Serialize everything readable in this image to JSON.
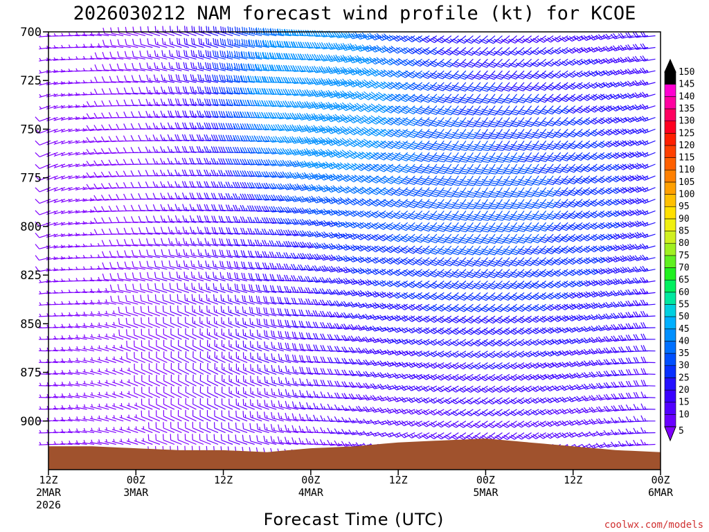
{
  "title": "2026030212 NAM forecast wind profile (kt) for KCOE",
  "credit": "coolwx.com/models",
  "colors": {
    "ground": "#a0522d",
    "scale": [
      "#7f00ff",
      "#6a00ff",
      "#5200ff",
      "#3a00ff",
      "#2410ff",
      "#0830ff",
      "#0050ff",
      "#0070ff",
      "#0090ff",
      "#00b0ff",
      "#00d0e0",
      "#00e8a0",
      "#00f060",
      "#20f020",
      "#60f020",
      "#a0f020",
      "#d0f020",
      "#f0f010",
      "#ffe000",
      "#ffc000",
      "#ffa000",
      "#ff8000",
      "#ff6000",
      "#ff4000",
      "#ff2000",
      "#ff0020",
      "#ff0060",
      "#ff00a0",
      "#ff00d0",
      "#000000"
    ]
  },
  "chart_data": {
    "type": "wind-barb-time-height",
    "title": "2026030212 NAM forecast wind profile (kt) for KCOE",
    "xlabel": "Forecast Time (UTC)",
    "ylabel": "",
    "ylim": [
      700,
      925
    ],
    "yticks": [
      700,
      725,
      750,
      775,
      800,
      825,
      850,
      875,
      900
    ],
    "x_hours_range": [
      0,
      84
    ],
    "xticks": [
      {
        "hour": 0,
        "lines": [
          "12Z",
          "2MAR",
          "2026"
        ]
      },
      {
        "hour": 12,
        "lines": [
          "00Z",
          "3MAR"
        ]
      },
      {
        "hour": 24,
        "lines": [
          "12Z"
        ]
      },
      {
        "hour": 36,
        "lines": [
          "00Z",
          "4MAR"
        ]
      },
      {
        "hour": 48,
        "lines": [
          "12Z"
        ]
      },
      {
        "hour": 60,
        "lines": [
          "00Z",
          "5MAR"
        ]
      },
      {
        "hour": 72,
        "lines": [
          "12Z"
        ]
      },
      {
        "hour": 84,
        "lines": [
          "00Z",
          "6MAR"
        ]
      }
    ],
    "colorbar": {
      "units": "kt",
      "levels": [
        5,
        10,
        15,
        20,
        25,
        30,
        35,
        40,
        45,
        50,
        55,
        60,
        65,
        70,
        75,
        80,
        85,
        90,
        95,
        100,
        105,
        110,
        115,
        120,
        125,
        130,
        135,
        140,
        145,
        150
      ]
    },
    "surface_pressure": [
      {
        "hour": 0,
        "p": 913
      },
      {
        "hour": 6,
        "p": 913
      },
      {
        "hour": 12,
        "p": 914
      },
      {
        "hour": 18,
        "p": 915
      },
      {
        "hour": 24,
        "p": 915
      },
      {
        "hour": 30,
        "p": 916
      },
      {
        "hour": 36,
        "p": 914
      },
      {
        "hour": 42,
        "p": 913
      },
      {
        "hour": 48,
        "p": 911
      },
      {
        "hour": 54,
        "p": 910
      },
      {
        "hour": 60,
        "p": 909
      },
      {
        "hour": 66,
        "p": 911
      },
      {
        "hour": 72,
        "p": 913
      },
      {
        "hour": 78,
        "p": 915
      },
      {
        "hour": 84,
        "p": 916
      }
    ],
    "wind_field": {
      "barb_hour_step": 1,
      "barb_pressure_step": 6,
      "max_speed_kt": 48,
      "max_speed_layer": "705-755 hPa near 00Z 4MAR",
      "direction": "mostly westerly to northwesterly"
    }
  }
}
